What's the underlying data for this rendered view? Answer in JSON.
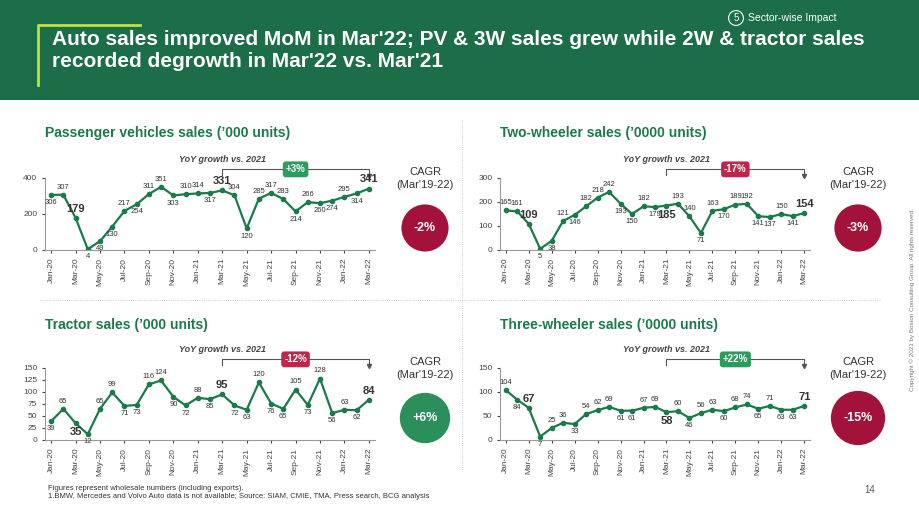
{
  "header": {
    "title": "Auto sales improved MoM in Mar'22; PV & 3W sales grew while 2W & tractor sales recorded degrowth in Mar'22 vs. Mar'21",
    "section_number": "5",
    "section": "Sector-wise Impact"
  },
  "chart_data": [
    {
      "type": "line",
      "title": "Passenger vehicles sales (’000 units)",
      "categories": [
        "Jan-20",
        null,
        "Mar-20",
        null,
        "May-20",
        null,
        "Jul-20",
        null,
        "Sep-20",
        null,
        "Nov-20",
        null,
        "Jan-21",
        null,
        "Mar-21",
        null,
        "May-21",
        null,
        "Jul-21",
        null,
        "Sep-21",
        null,
        "Nov-21",
        null,
        "Jan-22",
        null,
        "Mar-22"
      ],
      "values": [
        306,
        307,
        179,
        4,
        49,
        130,
        217,
        254,
        311,
        351,
        303,
        310,
        314,
        317,
        331,
        304,
        120,
        285,
        317,
        283,
        214,
        266,
        260,
        274,
        295,
        314,
        341
      ],
      "color": "#1a7a4c",
      "marker": "o",
      "ylim": [
        0,
        400
      ],
      "yticks": [
        0,
        200,
        400
      ],
      "data_labels": true,
      "annotations": {
        "yoy": {
          "label": "YoY growth vs. 2021",
          "text": "+3%",
          "color": "#2a9d5c",
          "from": "Mar-21",
          "to": "Mar-22"
        },
        "cagr": {
          "label": "CAGR",
          "period": "(Mar'19-22)",
          "text": "-2%",
          "color": "#a3123a"
        }
      }
    },
    {
      "type": "line",
      "title": "Two-wheeler sales (’0000 units)",
      "categories": [
        "Jan-20",
        null,
        "Mar-20",
        null,
        "May-20",
        null,
        "Jul-20",
        null,
        "Sep-20",
        null,
        "Nov-20",
        null,
        "Jan-21",
        null,
        "Mar-21",
        null,
        "May-21",
        null,
        "Jul-21",
        null,
        "Sep-21",
        null,
        "Nov-21",
        null,
        "Jan-22",
        null,
        "Mar-22"
      ],
      "values": [
        165,
        161,
        109,
        5,
        38,
        121,
        146,
        182,
        218,
        242,
        193,
        150,
        182,
        179,
        185,
        193,
        140,
        71,
        163,
        170,
        189,
        192,
        141,
        137,
        150,
        141,
        154
      ],
      "color": "#1a7a4c",
      "marker": "o",
      "ylim": [
        0,
        300
      ],
      "yticks": [
        0,
        100,
        200,
        300
      ],
      "data_labels": true,
      "annotations": {
        "yoy": {
          "label": "YoY growth vs. 2021",
          "text": "-17%",
          "color": "#c0264b",
          "from": "Mar-21",
          "to": "Mar-22"
        },
        "cagr": {
          "label": "CAGR",
          "period": "(Mar'19-22)",
          "text": "-3%",
          "color": "#a3123a"
        }
      }
    },
    {
      "type": "line",
      "title": "Tractor sales (’000 units)",
      "categories": [
        "Jan-20",
        null,
        "Mar-20",
        null,
        "May-20",
        null,
        "Jul-20",
        null,
        "Sep-20",
        null,
        "Nov-20",
        null,
        "Jan-21",
        null,
        "Mar-21",
        null,
        "May-21",
        null,
        "Jul-21",
        null,
        "Sep-21",
        null,
        "Nov-21",
        null,
        "Jan-22",
        null,
        "Mar-22"
      ],
      "values": [
        39,
        65,
        35,
        12,
        65,
        99,
        71,
        73,
        116,
        124,
        90,
        72,
        88,
        85,
        95,
        72,
        63,
        120,
        76,
        65,
        105,
        73,
        128,
        56,
        63,
        62,
        84
      ],
      "color": "#1a7a4c",
      "marker": "o",
      "ylim": [
        0,
        150
      ],
      "yticks": [
        0,
        25,
        50,
        75,
        100,
        125,
        150
      ],
      "data_labels": true,
      "annotations": {
        "yoy": {
          "label": "YoY growth vs. 2021",
          "text": "-12%",
          "color": "#c0264b",
          "from": "Mar-21",
          "to": "Mar-22"
        },
        "cagr": {
          "label": "CAGR",
          "period": "(Mar'19-22)",
          "text": "+6%",
          "color": "#2a8f5a"
        }
      }
    },
    {
      "type": "line",
      "title": "Three-wheeler sales (’0000 units)",
      "categories": [
        "Jan-20",
        null,
        "Mar-20",
        null,
        "May-20",
        null,
        "Jul-20",
        null,
        "Sep-20",
        null,
        "Nov-20",
        null,
        "Jan-21",
        null,
        "Mar-21",
        null,
        "May-21",
        null,
        "Jul-21",
        null,
        "Sep-21",
        null,
        "Nov-21",
        null,
        "Jan-22",
        null,
        "Mar-22"
      ],
      "values": [
        104,
        84,
        67,
        7,
        25,
        36,
        33,
        54,
        62,
        69,
        61,
        61,
        67,
        69,
        58,
        60,
        46,
        56,
        63,
        60,
        68,
        74,
        65,
        71,
        63,
        63,
        71
      ],
      "color": "#1a7a4c",
      "marker": "o",
      "ylim": [
        0,
        150
      ],
      "yticks": [
        0,
        50,
        100,
        150
      ],
      "data_labels": true,
      "annotations": {
        "yoy": {
          "label": "YoY growth vs. 2021",
          "text": "+22%",
          "color": "#2a9d5c",
          "from": "Mar-21",
          "to": "Mar-22"
        },
        "cagr": {
          "label": "CAGR",
          "period": "(Mar'19-22)",
          "text": "-15%",
          "color": "#a3123a"
        }
      }
    }
  ],
  "footnotes": [
    "Figures represent wholesale numbers (including exports).",
    "1.BMW, Mercedes and Volvo Auto data is not available; Source: SIAM, CMIE, TMA, Press search, BCG analysis"
  ],
  "page_number": "14",
  "copyright": "Copyright © 2021 by Boston Consulting Group. All rights reserved."
}
